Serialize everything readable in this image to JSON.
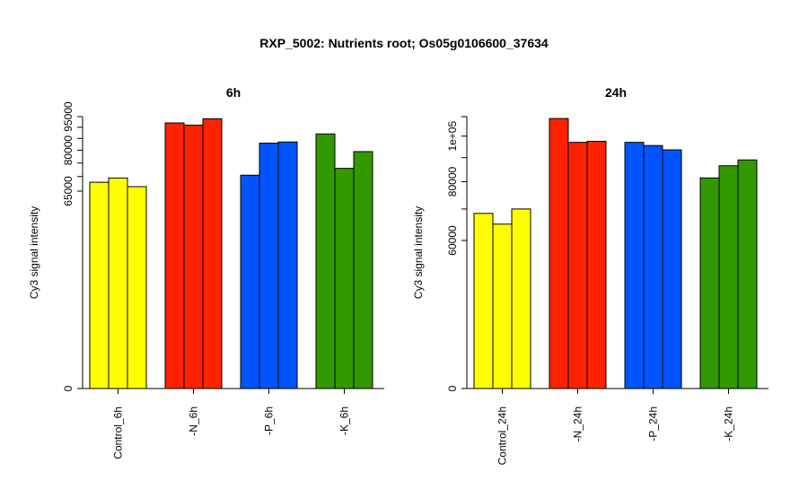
{
  "chart_title": "RXP_5002: Nutrients root; Os05g0106600_37634",
  "chart_data": [
    {
      "type": "bar",
      "title": "6h",
      "ylabel": "Cy3 signal intensity",
      "ylim": [
        0,
        95000
      ],
      "yticks": [
        {
          "value": 0,
          "label": "0"
        },
        {
          "value": 65000,
          "label": "65000"
        },
        {
          "value": 70000,
          "label": ""
        },
        {
          "value": 75000,
          "label": ""
        },
        {
          "value": 80000,
          "label": "80000"
        },
        {
          "value": 85000,
          "label": ""
        },
        {
          "value": 90000,
          "label": ""
        },
        {
          "value": 95000,
          "label": "95000"
        }
      ],
      "groups": [
        {
          "label": "Control_6h",
          "color": "#ffff00",
          "values": [
            68000,
            69500,
            66500
          ]
        },
        {
          "label": "-N_6h",
          "color": "#ff2200",
          "values": [
            92000,
            91000,
            94000
          ]
        },
        {
          "label": "-P_6h",
          "color": "#0055ff",
          "values": [
            70500,
            83000,
            83500
          ]
        },
        {
          "label": "-K_6h",
          "color": "#339900",
          "values": [
            87000,
            73000,
            79500
          ]
        }
      ]
    },
    {
      "type": "bar",
      "title": "24h",
      "ylabel": "Cy3 signal intensity",
      "ylim": [
        0,
        110000
      ],
      "yticks": [
        {
          "value": 0,
          "label": "0"
        },
        {
          "value": 60000,
          "label": "60000"
        },
        {
          "value": 70000,
          "label": ""
        },
        {
          "value": 80000,
          "label": "80000"
        },
        {
          "value": 90000,
          "label": ""
        },
        {
          "value": 100000,
          "label": "1e+05"
        },
        {
          "value": 110000,
          "label": ""
        }
      ],
      "groups": [
        {
          "label": "Control_24h",
          "color": "#ffff00",
          "values": [
            68500,
            65000,
            70000
          ]
        },
        {
          "label": "-N_24h",
          "color": "#ff2200",
          "values": [
            109000,
            97000,
            97500
          ]
        },
        {
          "label": "-P_24h",
          "color": "#0055ff",
          "values": [
            97000,
            95500,
            93500
          ]
        },
        {
          "label": "-K_24h",
          "color": "#339900",
          "values": [
            81500,
            86500,
            89000
          ]
        }
      ]
    }
  ]
}
